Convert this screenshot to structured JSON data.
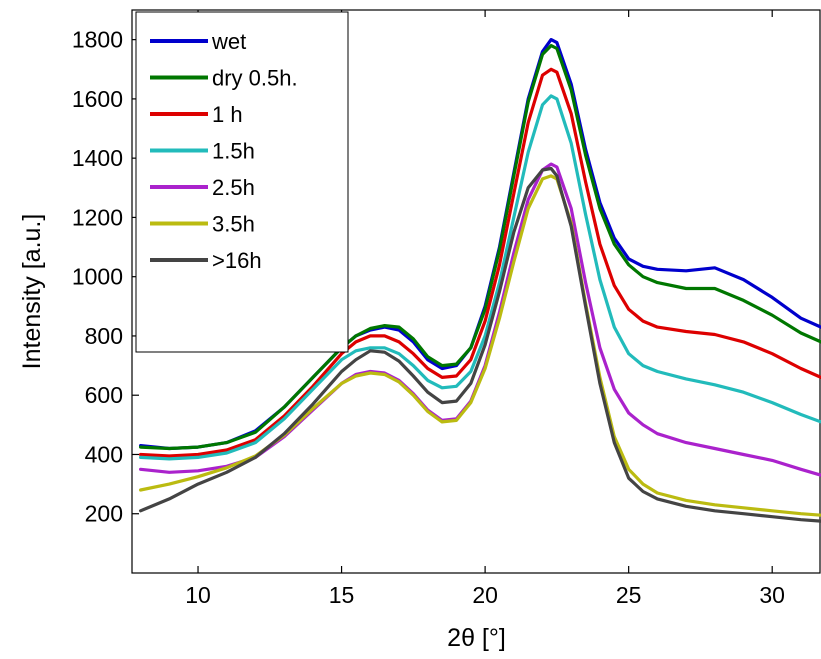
{
  "chart_data": {
    "type": "line",
    "title": "",
    "xlabel": "2θ [°]",
    "ylabel": "Intensity [a.u.]",
    "xlim": [
      7.7,
      31.7
    ],
    "ylim": [
      0,
      1900
    ],
    "xticks": [
      10,
      15,
      20,
      25,
      30
    ],
    "yticks": [
      200,
      400,
      600,
      800,
      1000,
      1200,
      1400,
      1600,
      1800
    ],
    "grid": false,
    "legend_position": "top-left",
    "x": [
      8,
      9,
      10,
      11,
      12,
      13,
      14,
      15,
      15.5,
      16,
      16.5,
      17,
      17.5,
      18,
      18.5,
      19,
      19.5,
      20,
      20.5,
      21,
      21.5,
      22,
      22.3,
      22.5,
      23,
      23.5,
      24,
      24.5,
      25,
      25.5,
      26,
      27,
      28,
      29,
      30,
      31,
      31.7
    ],
    "series": [
      {
        "name": "wet",
        "color": "#0000cc",
        "values": [
          430,
          420,
          425,
          440,
          480,
          560,
          660,
          760,
          800,
          820,
          830,
          820,
          780,
          720,
          690,
          700,
          760,
          900,
          1100,
          1350,
          1600,
          1760,
          1800,
          1790,
          1650,
          1430,
          1250,
          1130,
          1060,
          1035,
          1025,
          1020,
          1030,
          990,
          930,
          860,
          830
        ]
      },
      {
        "name": "dry 0.5h.",
        "color": "#007700",
        "values": [
          425,
          420,
          425,
          440,
          475,
          560,
          660,
          760,
          800,
          825,
          835,
          830,
          790,
          730,
          700,
          705,
          760,
          890,
          1090,
          1340,
          1590,
          1750,
          1780,
          1770,
          1630,
          1410,
          1230,
          1110,
          1040,
          1000,
          980,
          960,
          960,
          920,
          870,
          810,
          780
        ]
      },
      {
        "name": "1 h",
        "color": "#dd0000",
        "values": [
          400,
          395,
          400,
          415,
          450,
          530,
          630,
          740,
          780,
          800,
          800,
          780,
          740,
          690,
          660,
          665,
          720,
          850,
          1040,
          1280,
          1520,
          1680,
          1700,
          1690,
          1550,
          1320,
          1110,
          970,
          890,
          850,
          830,
          815,
          805,
          780,
          740,
          690,
          660
        ]
      },
      {
        "name": "1.5h",
        "color": "#22bbbb",
        "values": [
          390,
          385,
          390,
          405,
          440,
          520,
          620,
          720,
          750,
          760,
          760,
          740,
          700,
          650,
          625,
          630,
          680,
          800,
          980,
          1200,
          1420,
          1580,
          1610,
          1600,
          1450,
          1210,
          990,
          830,
          740,
          700,
          680,
          655,
          635,
          610,
          575,
          535,
          510
        ]
      },
      {
        "name": "2.5h",
        "color": "#aa22cc",
        "values": [
          350,
          340,
          345,
          360,
          390,
          460,
          550,
          640,
          670,
          680,
          675,
          650,
          605,
          550,
          515,
          520,
          580,
          700,
          880,
          1080,
          1260,
          1360,
          1380,
          1370,
          1230,
          980,
          760,
          620,
          540,
          500,
          470,
          440,
          420,
          400,
          380,
          350,
          330
        ]
      },
      {
        "name": "3.5h",
        "color": "#bbbb11",
        "values": [
          280,
          300,
          325,
          355,
          395,
          465,
          555,
          640,
          665,
          675,
          670,
          645,
          600,
          545,
          510,
          515,
          575,
          690,
          860,
          1050,
          1230,
          1330,
          1340,
          1330,
          1180,
          910,
          660,
          460,
          350,
          300,
          270,
          245,
          230,
          220,
          210,
          200,
          195
        ]
      },
      {
        "name": ">16h",
        "color": "#444444",
        "values": [
          210,
          250,
          300,
          340,
          390,
          470,
          570,
          680,
          720,
          750,
          745,
          715,
          665,
          610,
          575,
          580,
          640,
          770,
          950,
          1150,
          1300,
          1360,
          1365,
          1340,
          1170,
          900,
          640,
          440,
          320,
          275,
          250,
          225,
          210,
          200,
          190,
          180,
          175
        ]
      }
    ]
  }
}
